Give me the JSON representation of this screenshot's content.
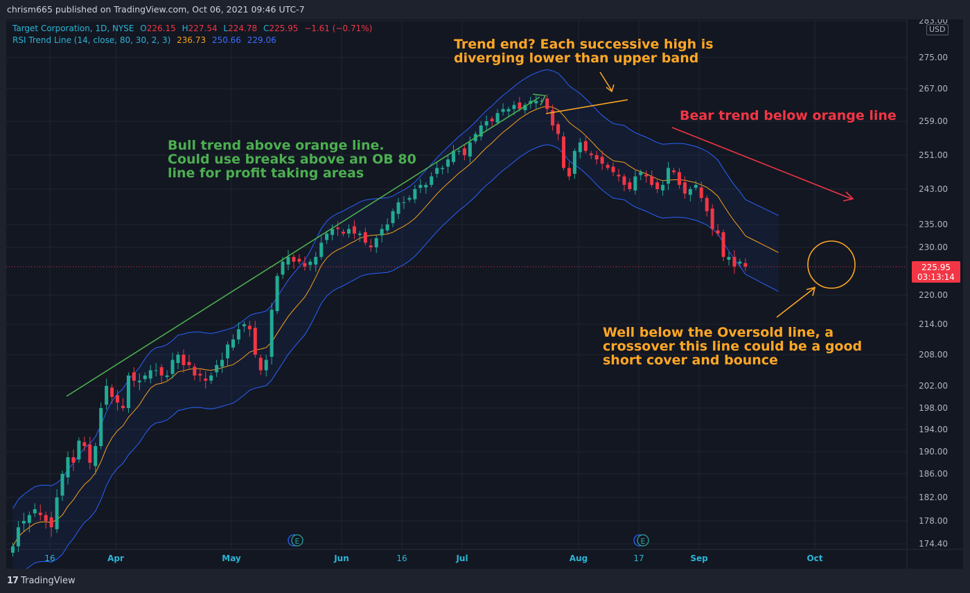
{
  "header": {
    "publish_line": "chrism665 published on TradingView.com, Oct 06, 2021 09:46 UTC-7"
  },
  "legend": {
    "symbol": "Target Corporation, 1D, NYSE",
    "o_label": "O",
    "o_value": "226.15",
    "h_label": "H",
    "h_value": "227.54",
    "l_label": "L",
    "l_value": "224.78",
    "c_label": "C",
    "c_value": "225.95",
    "change": "−1.61 (−0.71%)",
    "indicator": "RSI Trend Line (14, close, 80, 30, 2, 3)",
    "ind_v1": "236.73",
    "ind_v2": "250.66",
    "ind_v3": "229.06"
  },
  "currency": "USD",
  "last_price": {
    "value": "225.95",
    "countdown": "03:13:14"
  },
  "annotations": {
    "top": "Trend end? Each successive high is\ndiverging lower than upper band",
    "bear": "Bear trend below orange line",
    "bull": "Bull trend above orange line.\nCould use breaks above an OB 80\nline for profit taking areas",
    "oversold": "Well below the Oversold line, a\ncrossover this line could be a good\nshort cover and bounce"
  },
  "earnings_badge": "E",
  "footer": {
    "brand": "TradingView",
    "logo_text": "17"
  },
  "colors": {
    "up": "#26a69a",
    "up_candle": "#22ab94",
    "down": "#f23645",
    "mid_band": "#f7a21b",
    "outer_band": "#2962ff",
    "bull_text": "#4caf50",
    "bear_text": "#f23645",
    "note_text": "#ffa726"
  },
  "chart_data": {
    "type": "candlestick",
    "y_axis": {
      "ylim": [
        172,
        286
      ],
      "ticks": [
        174.4,
        178.0,
        182.0,
        186.0,
        190.0,
        194.0,
        198.0,
        202.0,
        208.0,
        214.0,
        220.0,
        225.95,
        230.0,
        235.0,
        243.0,
        251.0,
        259.0,
        267.0,
        275.0,
        283.0
      ],
      "tick_labels": [
        "174.40",
        "178.00",
        "182.00",
        "186.00",
        "190.00",
        "194.00",
        "198.00",
        "202.00",
        "208.00",
        "214.00",
        "220.00",
        "225.95",
        "230.00",
        "235.00",
        "243.00",
        "251.00",
        "259.00",
        "267.00",
        "275.00",
        "283.00"
      ]
    },
    "x_axis": {
      "labels": [
        {
          "label": "16",
          "bar": 8
        },
        {
          "label": "Apr",
          "bar": 19
        },
        {
          "label": "May",
          "bar": 40
        },
        {
          "label": "Jun",
          "bar": 60
        },
        {
          "label": "16",
          "bar": 71
        },
        {
          "label": "Jul",
          "bar": 81
        },
        {
          "label": "Aug",
          "bar": 102
        },
        {
          "label": "17",
          "bar": 113
        },
        {
          "label": "Sep",
          "bar": 123
        },
        {
          "label": "Oct",
          "bar": 144
        }
      ],
      "bold_labels": [
        "Apr",
        "May",
        "Jun",
        "Jul",
        "Aug",
        "Sep",
        "Oct"
      ]
    },
    "closes": [
      174,
      177,
      178,
      179,
      180,
      179,
      178,
      177,
      182,
      186,
      189,
      188,
      192,
      191,
      188,
      191,
      198,
      202,
      200,
      199,
      198,
      204,
      203,
      203,
      204,
      205,
      205,
      204,
      204,
      207,
      208,
      206,
      206,
      204,
      204,
      203,
      204,
      206,
      207,
      210,
      211,
      213,
      214,
      213,
      208,
      205,
      207,
      217,
      224,
      227,
      228,
      227,
      227,
      226,
      227,
      228,
      231,
      233,
      234,
      234,
      233,
      234,
      233,
      233,
      231,
      230,
      232,
      234,
      235,
      238,
      240,
      240,
      241,
      243,
      244,
      244,
      246,
      248,
      248,
      250,
      252,
      252,
      251,
      254,
      256,
      258,
      259,
      259,
      261,
      262,
      262,
      263,
      262,
      263,
      264,
      264,
      264,
      262,
      258,
      256,
      248,
      246,
      252,
      254,
      252,
      251,
      250,
      249,
      248,
      247,
      246,
      244,
      243,
      246,
      247,
      246,
      244,
      243,
      244,
      248,
      247,
      244,
      242,
      243,
      244,
      241,
      238,
      234,
      233,
      228,
      228,
      226,
      227,
      225.95
    ],
    "series": [
      {
        "name": "RSI Trend Line (14, close, 80, 30, 2, 3)",
        "last_values": [
          236.73,
          250.66,
          229.06
        ]
      }
    ]
  }
}
